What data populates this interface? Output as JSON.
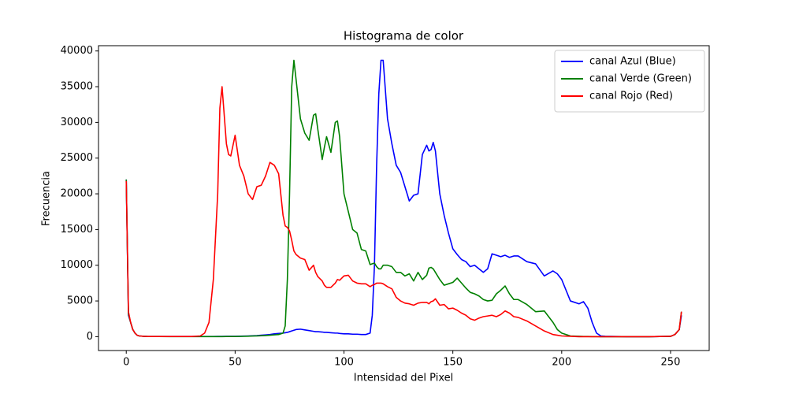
{
  "chart_data": {
    "type": "line",
    "title": "Histograma de color",
    "x_label": "Intensidad del Pixel",
    "y_label": "Frecuencia",
    "x": [
      0,
      1,
      2,
      3,
      4,
      5,
      6,
      8,
      10,
      15,
      20,
      25,
      30,
      34,
      36,
      38,
      40,
      42,
      43,
      44,
      46,
      47,
      48,
      50,
      52,
      54,
      56,
      58,
      60,
      62,
      64,
      66,
      68,
      70,
      72,
      73,
      74,
      75,
      76,
      77,
      78,
      80,
      82,
      84,
      86,
      87,
      88,
      90,
      91,
      92,
      94,
      96,
      97,
      98,
      100,
      102,
      104,
      106,
      108,
      110,
      112,
      113,
      114,
      115,
      116,
      117,
      118,
      120,
      122,
      124,
      126,
      128,
      130,
      132,
      134,
      136,
      138,
      139,
      140,
      141,
      142,
      144,
      146,
      148,
      150,
      152,
      154,
      156,
      158,
      160,
      162,
      164,
      166,
      168,
      170,
      172,
      174,
      176,
      178,
      180,
      184,
      188,
      192,
      196,
      198,
      200,
      204,
      208,
      210,
      212,
      214,
      216,
      218,
      220,
      230,
      240,
      250,
      252,
      254,
      255
    ],
    "series": [
      {
        "name": "canal Azul (Blue)",
        "color": "#0000ff",
        "values": [
          22000,
          3000,
          2000,
          1000,
          500,
          200,
          100,
          50,
          30,
          20,
          20,
          20,
          20,
          20,
          20,
          30,
          30,
          40,
          40,
          40,
          50,
          50,
          50,
          60,
          70,
          80,
          100,
          120,
          150,
          200,
          250,
          300,
          400,
          450,
          500,
          550,
          600,
          700,
          800,
          900,
          1000,
          1050,
          950,
          850,
          750,
          700,
          700,
          650,
          600,
          600,
          550,
          500,
          500,
          450,
          400,
          400,
          350,
          350,
          300,
          300,
          500,
          3000,
          10000,
          24000,
          34000,
          38700,
          38700,
          30500,
          27000,
          24000,
          23000,
          21000,
          19000,
          19800,
          20000,
          25500,
          26800,
          26000,
          26200,
          27200,
          26000,
          20000,
          17000,
          14500,
          12300,
          11500,
          10800,
          10500,
          9800,
          10000,
          9500,
          9000,
          9500,
          11600,
          11400,
          11200,
          11400,
          11100,
          11300,
          11300,
          10500,
          10200,
          8500,
          9200,
          8800,
          8000,
          5000,
          4600,
          4900,
          4000,
          2000,
          500,
          100,
          50,
          0,
          0,
          50,
          300,
          1000,
          3000
        ]
      },
      {
        "name": "canal Verde (Green)",
        "color": "#008000",
        "values": [
          22000,
          3200,
          2000,
          1000,
          500,
          200,
          100,
          50,
          30,
          20,
          10,
          10,
          10,
          10,
          10,
          10,
          10,
          10,
          10,
          10,
          20,
          20,
          20,
          30,
          40,
          50,
          70,
          90,
          110,
          130,
          160,
          200,
          250,
          300,
          500,
          1500,
          8000,
          20000,
          35000,
          38700,
          36000,
          30500,
          28500,
          27500,
          31000,
          31200,
          29000,
          24800,
          26500,
          28000,
          25800,
          30000,
          30200,
          28000,
          20000,
          17500,
          15000,
          14500,
          12200,
          12000,
          10100,
          10200,
          10300,
          9800,
          9500,
          9500,
          10000,
          10000,
          9800,
          9000,
          9000,
          8500,
          8800,
          7800,
          9000,
          8000,
          8600,
          9600,
          9700,
          9500,
          9000,
          8000,
          7200,
          7400,
          7600,
          8200,
          7500,
          6800,
          6200,
          6000,
          5700,
          5200,
          5000,
          5100,
          6000,
          6500,
          7100,
          6000,
          5200,
          5200,
          4500,
          3500,
          3600,
          2000,
          1000,
          500,
          100,
          50,
          30,
          20,
          10,
          10,
          0,
          0,
          0,
          0,
          50,
          300,
          1000,
          3500
        ]
      },
      {
        "name": "canal Rojo (Red)",
        "color": "#ff0000",
        "values": [
          21800,
          3500,
          2000,
          1000,
          500,
          200,
          100,
          50,
          30,
          20,
          20,
          20,
          20,
          100,
          500,
          2000,
          8000,
          20000,
          32000,
          35000,
          27000,
          25500,
          25300,
          28200,
          24000,
          22500,
          20000,
          19200,
          21000,
          21200,
          22500,
          24400,
          24000,
          22800,
          17000,
          15500,
          15300,
          14800,
          13500,
          12000,
          11500,
          11000,
          10800,
          9300,
          10000,
          9000,
          8400,
          7800,
          7200,
          6900,
          6900,
          7500,
          8000,
          7900,
          8500,
          8600,
          7800,
          7500,
          7400,
          7400,
          7000,
          7200,
          7300,
          7500,
          7500,
          7500,
          7400,
          7000,
          6700,
          5500,
          5000,
          4700,
          4600,
          4400,
          4700,
          4800,
          4800,
          4600,
          4900,
          5000,
          5300,
          4400,
          4500,
          3900,
          4000,
          3700,
          3300,
          3000,
          2500,
          2300,
          2600,
          2800,
          2900,
          3000,
          2800,
          3100,
          3600,
          3300,
          2800,
          2700,
          2200,
          1500,
          800,
          300,
          200,
          100,
          50,
          0,
          0,
          0,
          0,
          0,
          0,
          0,
          0,
          0,
          50,
          300,
          1000,
          3500
        ]
      }
    ],
    "xlim": [
      -12.75,
      267.75
    ],
    "ylim": [
      -1940,
      40740
    ],
    "xticks": [
      0,
      50,
      100,
      150,
      200,
      250
    ],
    "yticks": [
      0,
      5000,
      10000,
      15000,
      20000,
      25000,
      30000,
      35000,
      40000
    ],
    "legend": "upper right"
  }
}
